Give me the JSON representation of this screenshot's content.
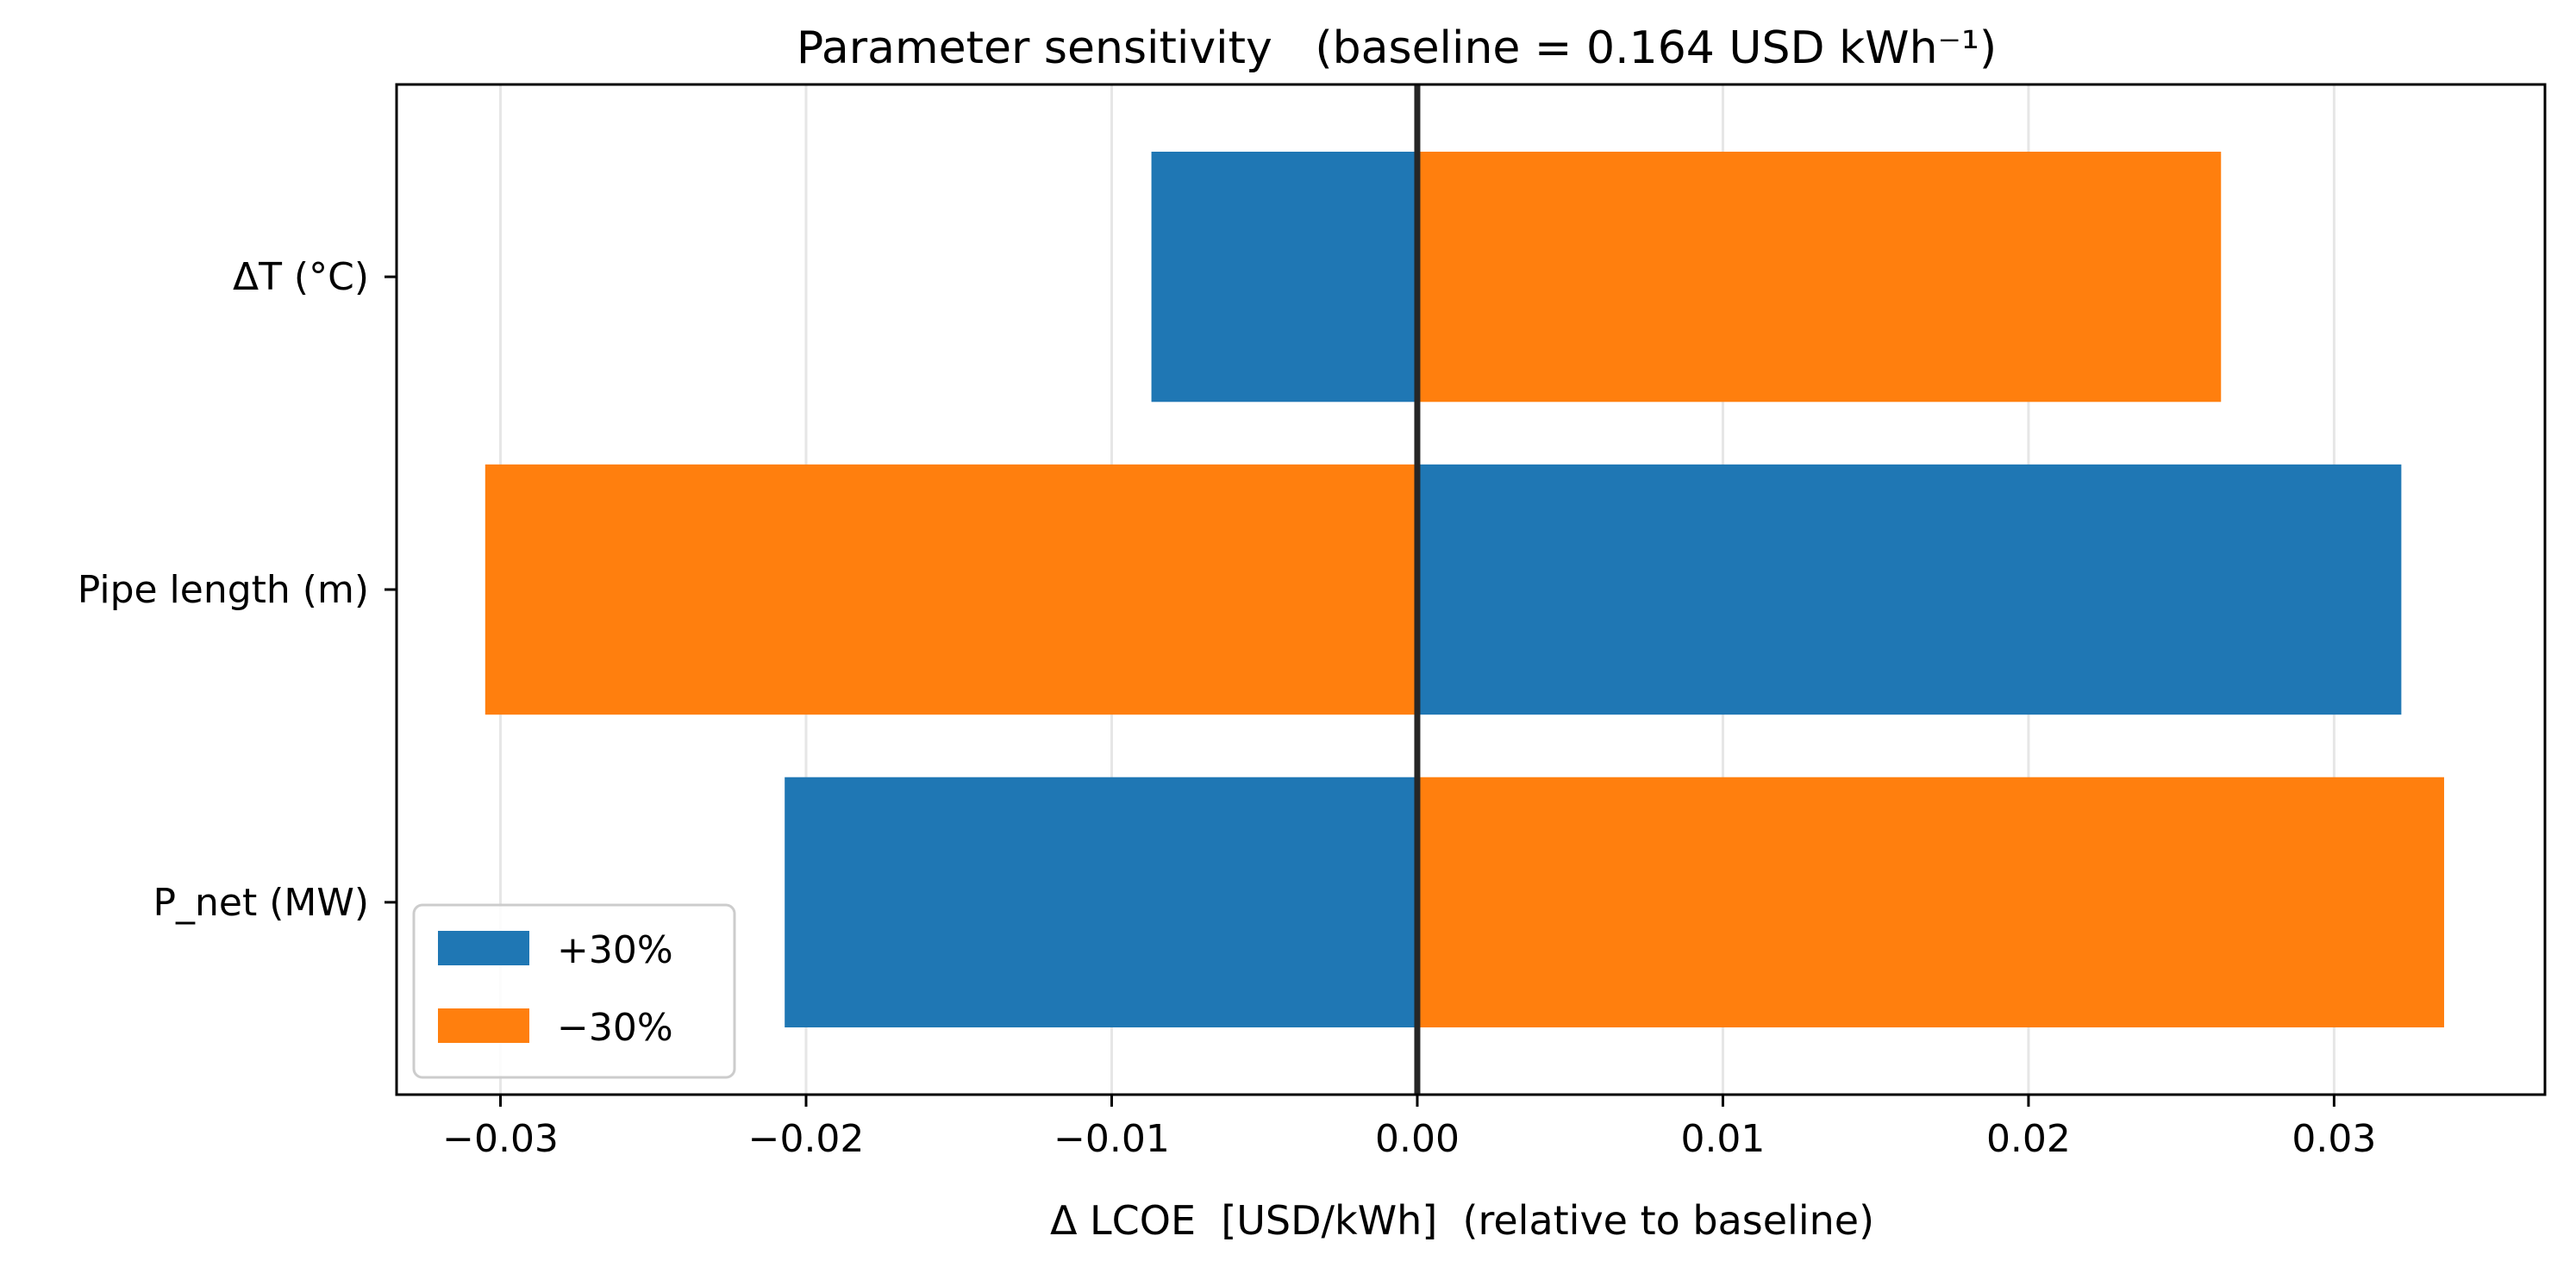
{
  "chart_data": {
    "type": "bar",
    "orientation": "horizontal",
    "title": "Parameter sensitivity   (baseline = 0.164 USD kWh⁻¹)",
    "xlabel": "Δ LCOE  [USD/kWh]  (relative to baseline)",
    "ylabel": "",
    "categories": [
      "P_net (MW)",
      "Pipe length (m)",
      "ΔT (°C)"
    ],
    "series": [
      {
        "name": "+30%",
        "color": "#1f77b4",
        "values": [
          -0.0207,
          0.0322,
          -0.0087
        ]
      },
      {
        "name": "−30%",
        "color": "#ff7f0e",
        "values": [
          0.0336,
          -0.0305,
          0.0263
        ]
      }
    ],
    "xlim": [
      -0.0334,
      0.0369
    ],
    "xticks": [
      -0.03,
      -0.02,
      -0.01,
      0.0,
      0.01,
      0.02,
      0.03
    ],
    "xtick_labels": [
      "−0.03",
      "−0.02",
      "−0.01",
      "0.00",
      "0.01",
      "0.02",
      "0.03"
    ],
    "grid": "x-major",
    "zero_line": true,
    "legend": {
      "placement": "lower-left"
    }
  }
}
